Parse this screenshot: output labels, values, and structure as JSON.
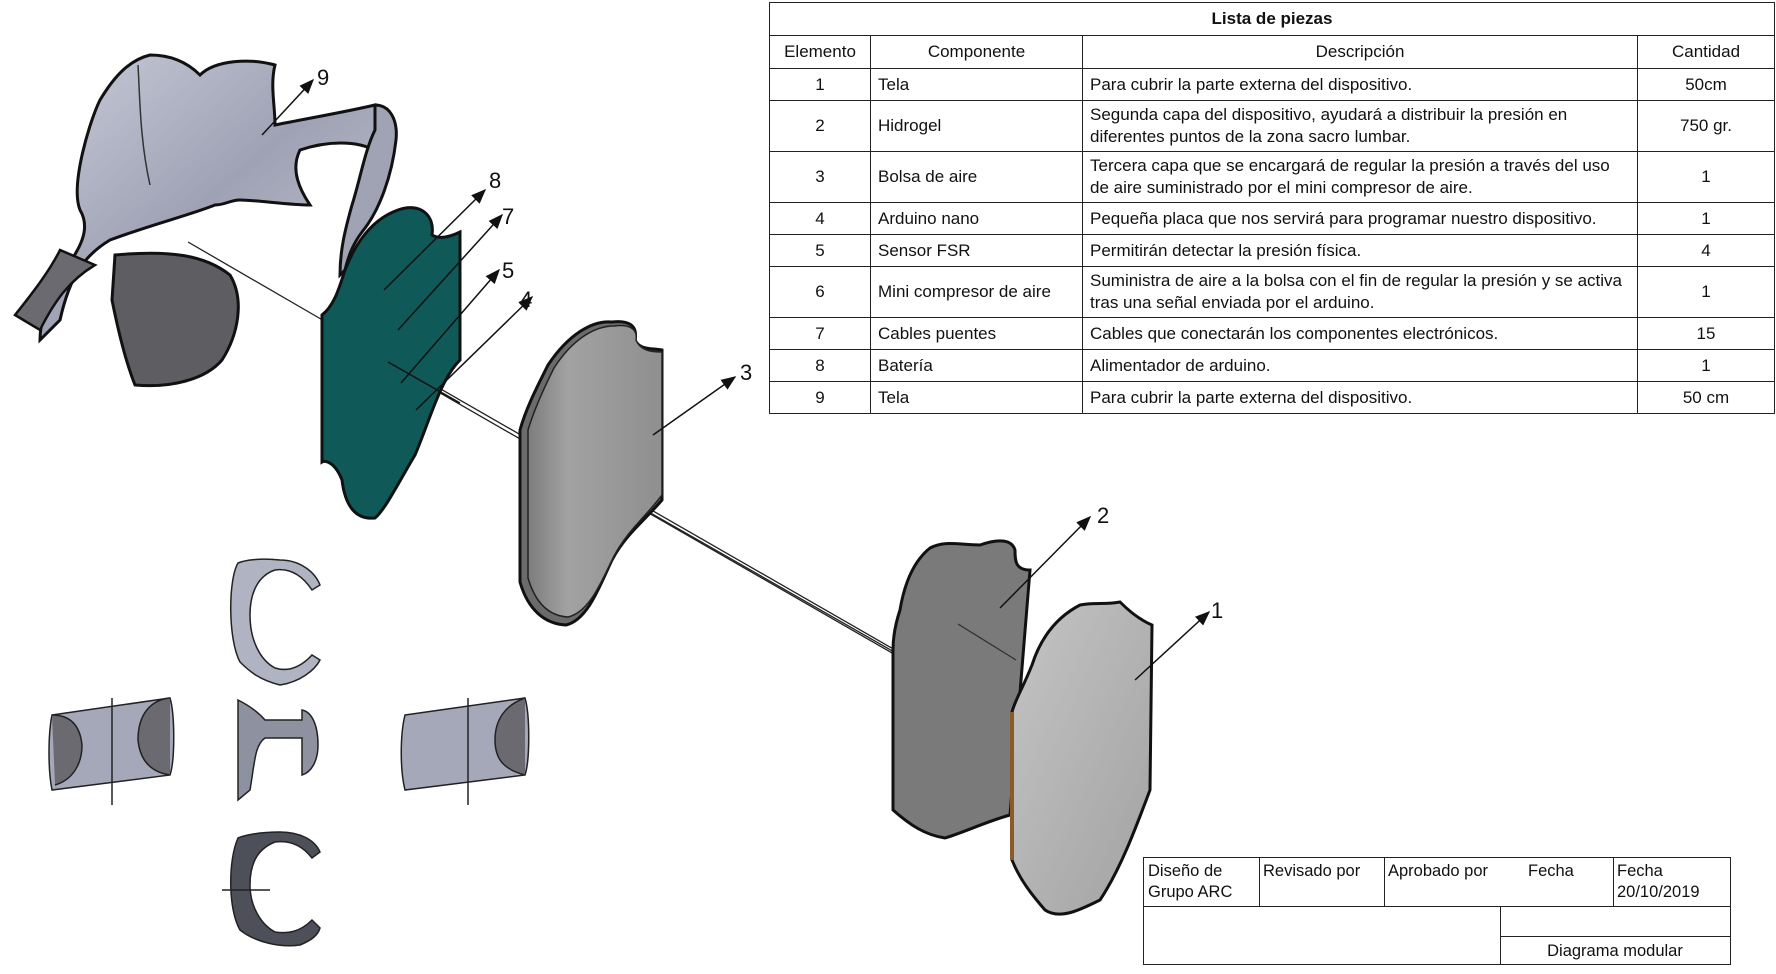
{
  "table": {
    "title": "Lista de piezas",
    "headers": [
      "Elemento",
      "Componente",
      "Descripción",
      "Cantidad"
    ],
    "rows": [
      {
        "elemento": "1",
        "componente": "Tela",
        "descripcion": "Para cubrir la parte externa del dispositivo.",
        "cantidad": "50cm"
      },
      {
        "elemento": "2",
        "componente": "Hidrogel",
        "descripcion": "Segunda capa del dispositivo, ayudará a distribuir la presión en diferentes puntos de la zona sacro lumbar.",
        "cantidad": "750 gr."
      },
      {
        "elemento": "3",
        "componente": "Bolsa de aire",
        "descripcion": "Tercera capa que se encargará de regular la presión a través del uso de aire suministrado por el mini compresor de aire.",
        "cantidad": "1"
      },
      {
        "elemento": "4",
        "componente": "Arduino nano",
        "descripcion": "Pequeña placa que nos servirá para programar nuestro dispositivo.",
        "cantidad": "1"
      },
      {
        "elemento": "5",
        "componente": "Sensor FSR",
        "descripcion": "Permitirán detectar la presión física.",
        "cantidad": "4"
      },
      {
        "elemento": "6",
        "componente": "Mini compresor de aire",
        "descripcion": "Suministra de aire a la bolsa con el fin de regular la presión y se activa tras una señal enviada por el arduino.",
        "cantidad": "1"
      },
      {
        "elemento": "7",
        "componente": "Cables puentes",
        "descripcion": "Cables que conectarán los componentes electrónicos.",
        "cantidad": "15"
      },
      {
        "elemento": "8",
        "componente": "Batería",
        "descripcion": "Alimentador de arduino.",
        "cantidad": "1"
      },
      {
        "elemento": "9",
        "componente": "Tela",
        "descripcion": "Para cubrir la parte externa del dispositivo.",
        "cantidad": "50 cm"
      }
    ]
  },
  "callouts": [
    "1",
    "2",
    "3",
    "4",
    "5",
    "7",
    "8",
    "9"
  ],
  "title_block": {
    "diseno_label": "Diseño de",
    "diseno_value": "Grupo ARC",
    "revisado_label": "Revisado por",
    "aprobado_label": "Aprobado por",
    "fecha_label": "Fecha",
    "fecha2_label": "Fecha",
    "fecha2_value": "20/10/2019",
    "drawing_name": "Diagrama modular"
  },
  "colors": {
    "fabric_light": "#a9adbd",
    "fabric_dark": "#5d5d62",
    "board_green": "#0f5a58",
    "air_bag": "#9c9c9c",
    "hydrogel": "#858585",
    "outer_fabric": "#b3b3b3"
  }
}
